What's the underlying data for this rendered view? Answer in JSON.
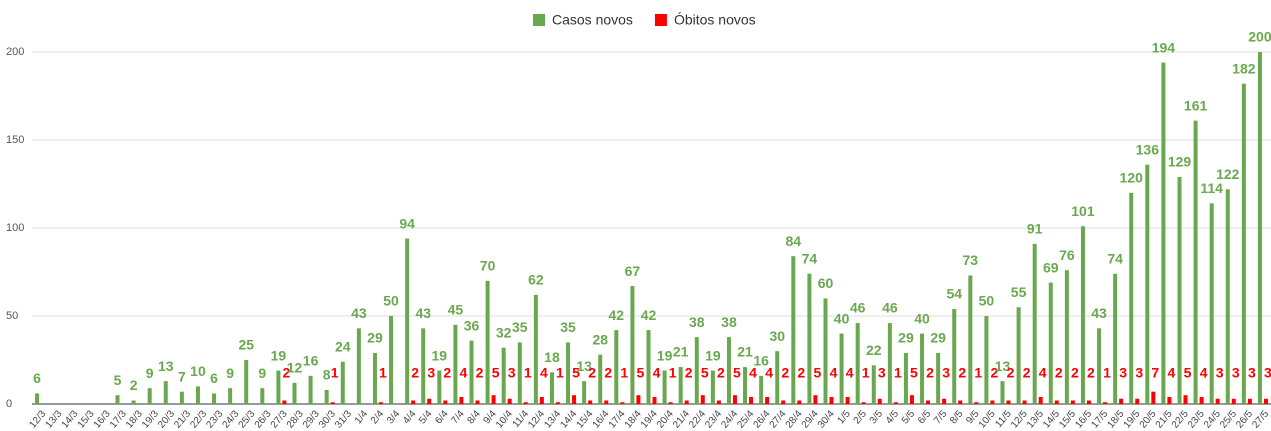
{
  "chart_data": {
    "type": "bar",
    "categories": [
      "12/3",
      "13/3",
      "14/3",
      "15/3",
      "16/3",
      "17/3",
      "18/3",
      "19/3",
      "20/3",
      "21/3",
      "22/3",
      "23/3",
      "24/3",
      "25/3",
      "26/3",
      "27/3",
      "28/3",
      "29/3",
      "30/3",
      "31/3",
      "1/4",
      "2/4",
      "3/4",
      "4/4",
      "5/4",
      "6/4",
      "7/4",
      "8/4",
      "9/4",
      "10/4",
      "11/4",
      "12/4",
      "13/4",
      "14/4",
      "15/4",
      "16/4",
      "17/4",
      "18/4",
      "19/4",
      "20/4",
      "21/4",
      "22/4",
      "23/4",
      "24/4",
      "25/4",
      "26/4",
      "27/4",
      "28/4",
      "29/4",
      "30/4",
      "1/5",
      "2/5",
      "3/5",
      "4/5",
      "5/5",
      "6/5",
      "7/5",
      "8/5",
      "9/5",
      "10/5",
      "11/5",
      "12/5",
      "13/5",
      "14/5",
      "15/5",
      "16/5",
      "17/5",
      "18/5",
      "19/5",
      "20/5",
      "21/5",
      "22/5",
      "23/5",
      "24/5",
      "25/5",
      "26/5",
      "27/5"
    ],
    "series": [
      {
        "name": "Casos novos",
        "color": "#6aa84f",
        "values": [
          6,
          0,
          0,
          0,
          0,
          5,
          2,
          9,
          13,
          7,
          10,
          6,
          9,
          25,
          9,
          19,
          12,
          16,
          8,
          24,
          43,
          29,
          50,
          94,
          43,
          19,
          45,
          36,
          70,
          32,
          35,
          62,
          18,
          35,
          13,
          28,
          42,
          67,
          42,
          19,
          21,
          38,
          19,
          38,
          21,
          16,
          30,
          84,
          74,
          60,
          40,
          46,
          22,
          46,
          29,
          40,
          29,
          54,
          73,
          50,
          13,
          55,
          91,
          69,
          76,
          101,
          43,
          74,
          120,
          136,
          194,
          129,
          161,
          114,
          122,
          182,
          200
        ]
      },
      {
        "name": "Óbitos novos",
        "color": "#ff0000",
        "values": [
          0,
          0,
          0,
          0,
          0,
          0,
          0,
          0,
          0,
          0,
          0,
          0,
          0,
          0,
          0,
          2,
          0,
          0,
          1,
          0,
          0,
          1,
          0,
          2,
          3,
          2,
          4,
          2,
          5,
          3,
          1,
          4,
          1,
          5,
          2,
          2,
          1,
          5,
          4,
          1,
          2,
          5,
          2,
          5,
          4,
          4,
          2,
          2,
          5,
          4,
          4,
          1,
          3,
          1,
          5,
          2,
          3,
          2,
          1,
          2,
          2,
          2,
          4,
          2,
          2,
          2,
          1,
          3,
          3,
          7,
          4,
          5,
          4,
          3,
          3,
          3,
          3
        ]
      }
    ],
    "ylim": [
      0,
      200
    ],
    "yticks": [
      0,
      50,
      100,
      150,
      200
    ],
    "grid": true,
    "legend": "top"
  }
}
